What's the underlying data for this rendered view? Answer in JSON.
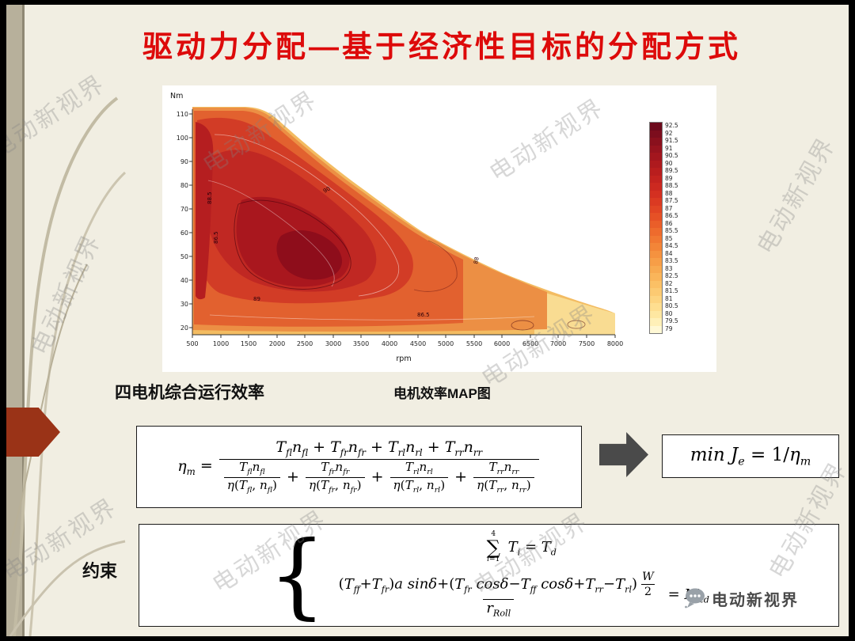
{
  "slide": {
    "title": "驱动力分配—基于经济性目标的分配方式",
    "watermark": "电动新视界",
    "logo_text": "电动新视界",
    "caption_left": "四电机综合运行效率",
    "caption_chart": "电机效率MAP图",
    "constraint_label": "约束",
    "colors": {
      "title_red": "#dd0a0a",
      "flow_arrow_gray": "#4a4a4a",
      "deco_arrow_red": "#9a3317",
      "background_cream": "#f1eee2"
    }
  },
  "chart": {
    "ylabel": "Nm",
    "xlabel": "rpm",
    "yticks": [
      "110",
      "100",
      "90",
      "80",
      "70",
      "60",
      "50",
      "40",
      "30",
      "20"
    ],
    "xticks": [
      "500",
      "1000",
      "1500",
      "2000",
      "2500",
      "3000",
      "3500",
      "4000",
      "4500",
      "5000",
      "5500",
      "6000",
      "6500",
      "7000",
      "7500",
      "8000"
    ],
    "contour_labels": [
      "88.5",
      "86.5",
      "89",
      "86.5",
      "88",
      "90"
    ],
    "colorbar": {
      "values": [
        "92.5",
        "92",
        "91.5",
        "91",
        "90.5",
        "90",
        "89.5",
        "89",
        "88.5",
        "88",
        "87.5",
        "87",
        "86.5",
        "86",
        "85.5",
        "85",
        "84.5",
        "84",
        "83.5",
        "83",
        "82.5",
        "82",
        "81.5",
        "81",
        "80.5",
        "80",
        "79.5",
        "79"
      ],
      "colors": [
        "#6d0a1c",
        "#7c0d1d",
        "#8a101d",
        "#97131e",
        "#a3161e",
        "#ae1a1e",
        "#b91e1e",
        "#c3231f",
        "#cc2920",
        "#d43021",
        "#db3a22",
        "#e14524",
        "#e65126",
        "#ea5e29",
        "#ee6b2d",
        "#f17832",
        "#f38538",
        "#f5923f",
        "#f79e47",
        "#f8aa50",
        "#fab55a",
        "#fbc065",
        "#fcca72",
        "#fdd480",
        "#fede90",
        "#fee7a1",
        "#fff0b8",
        "#fff8d5"
      ]
    }
  },
  "chart_data": {
    "type": "heatmap",
    "title": "电机效率MAP图",
    "xlabel": "rpm",
    "ylabel": "Nm",
    "x_range": [
      500,
      8000
    ],
    "y_range": [
      15,
      115
    ],
    "xticks": [
      500,
      1000,
      1500,
      2000,
      2500,
      3000,
      3500,
      4000,
      4500,
      5000,
      5500,
      6000,
      6500,
      7000,
      7500,
      8000
    ],
    "yticks": [
      20,
      30,
      40,
      50,
      60,
      70,
      80,
      90,
      100,
      110
    ],
    "colorbar_levels_pct": [
      79,
      79.5,
      80,
      80.5,
      81,
      81.5,
      82,
      82.5,
      83,
      83.5,
      84,
      84.5,
      85,
      85.5,
      86,
      86.5,
      87,
      87.5,
      88,
      88.5,
      89,
      89.5,
      90,
      90.5,
      91,
      91.5,
      92,
      92.5
    ],
    "contour_line_labels_pct": [
      86.5,
      88.5,
      89,
      88,
      90
    ],
    "peak_efficiency_pct": 92.5,
    "min_efficiency_pct": 79,
    "peak_region": {
      "rpm": [
        2000,
        3200
      ],
      "torque_nm": [
        35,
        60
      ]
    },
    "torque_envelope": {
      "rpm": [
        500,
        1500,
        2000,
        2500,
        3000,
        3500,
        4000,
        4500,
        5000,
        5500,
        6000,
        6500,
        7000,
        7500,
        8000
      ],
      "torque_nm": [
        113,
        113,
        104,
        93,
        84,
        75,
        67,
        60,
        54,
        48,
        43,
        38,
        33,
        29,
        26
      ]
    },
    "legend_position": "right",
    "grid": false
  },
  "formulas": {
    "brace": "{",
    "eta_html": "<i>η<sub>m</sub></i>&nbsp;=&nbsp;<span class='frac'><span class='num'><i>T<sub>fl</sub>n<sub>fl</sub></i> + <i>T<sub>fr</sub>n<sub>fr</sub></i> + <i>T<sub>rl</sub>n<sub>rl</sub></i> + <i>T<sub>rr</sub>n<sub>rr</sub></i></span><span class='den'><span class='frac'><span class='num'><i>T<sub>fl</sub>n<sub>fl</sub></i></span><span class='den'><i>η</i>(<i>T<sub>fl</sub></i>, <i>n<sub>fl</sub></i>)</span></span> + <span class='frac'><span class='num'><i>T<sub>fr</sub>n<sub>fr</sub></i></span><span class='den'><i>η</i>(<i>T<sub>fr</sub></i>, <i>n<sub>fr</sub></i>)</span></span> + <span class='frac'><span class='num'><i>T<sub>rl</sub>n<sub>rl</sub></i></span><span class='den'><i>η</i>(<i>T<sub>rl</sub></i>, <i>n<sub>rl</sub></i>)</span></span> + <span class='frac'><span class='num'><i>T<sub>rr</sub>n<sub>rr</sub></i></span><span class='den'><i>η</i>(<i>T<sub>rr</sub></i>, <i>n<sub>rr</sub></i>)</span></span></span></span>",
    "objective_html": "<i>min&nbsp;J<sub>e</sub></i> = 1/<i>η<sub>m</sub></i>",
    "constraint1_html": "<span class='bigsum'><span class='sumtop'>4</span><span class='sumsym'>∑</span><span class='sumbot'><i>i</i>=1</span></span> <i>T<sub>i</sub></i> = <i>T<sub>d</sub></i>",
    "constraint2_html": "<span class='frac'><span class='num'>(<i>T<sub>ff</sub></i>+<i>T<sub>fr</sub></i>)<i>a</i> <i>sinδ</i>+(<i>T<sub>fr</sub></i> <i>cosδ</i>−<i>T<sub>ff</sub></i> <i>cosδ</i>+<i>T<sub>rr</sub></i>−<i>T<sub>rl</sub></i>)<span class='frac'><span class='num'><i>W</i></span><span class='den'>2</span></span></span><span class='den'><i>r<sub>Roll</sub></i></span></span> = <i>M<sub>zd</sub></i>"
  }
}
